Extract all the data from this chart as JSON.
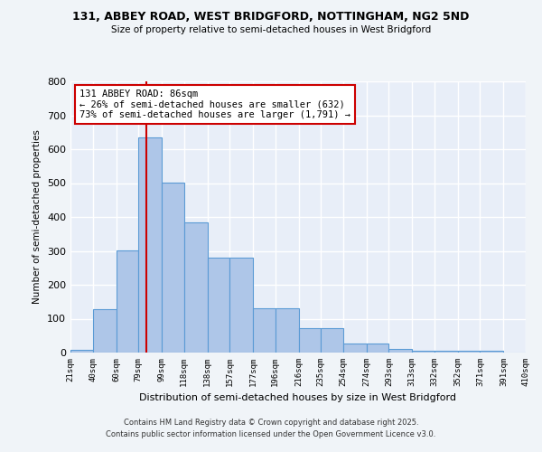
{
  "title1": "131, ABBEY ROAD, WEST BRIDGFORD, NOTTINGHAM, NG2 5ND",
  "title2": "Size of property relative to semi-detached houses in West Bridgford",
  "xlabel": "Distribution of semi-detached houses by size in West Bridgford",
  "ylabel": "Number of semi-detached properties",
  "bin_edges": [
    21,
    40,
    60,
    79,
    99,
    118,
    138,
    157,
    177,
    196,
    216,
    235,
    254,
    274,
    293,
    313,
    332,
    352,
    371,
    391,
    410
  ],
  "bin_labels": [
    "21sqm",
    "40sqm",
    "60sqm",
    "79sqm",
    "99sqm",
    "118sqm",
    "138sqm",
    "157sqm",
    "177sqm",
    "196sqm",
    "216sqm",
    "235sqm",
    "254sqm",
    "274sqm",
    "293sqm",
    "313sqm",
    "332sqm",
    "352sqm",
    "371sqm",
    "391sqm",
    "410sqm"
  ],
  "counts": [
    8,
    128,
    302,
    635,
    502,
    383,
    279,
    279,
    130,
    130,
    71,
    71,
    26,
    26,
    11,
    5,
    5,
    5,
    5,
    0
  ],
  "bar_color": "#aec6e8",
  "bar_edge_color": "#5b9bd5",
  "property_size": 86,
  "vline_color": "#cc0000",
  "annotation_text": "131 ABBEY ROAD: 86sqm\n← 26% of semi-detached houses are smaller (632)\n73% of semi-detached houses are larger (1,791) →",
  "annotation_box_color": "#ffffff",
  "annotation_edge_color": "#cc0000",
  "ylim": [
    0,
    800
  ],
  "yticks": [
    0,
    100,
    200,
    300,
    400,
    500,
    600,
    700,
    800
  ],
  "bg_color": "#e8eef8",
  "grid_color": "#ffffff",
  "footer1": "Contains HM Land Registry data © Crown copyright and database right 2025.",
  "footer2": "Contains public sector information licensed under the Open Government Licence v3.0."
}
